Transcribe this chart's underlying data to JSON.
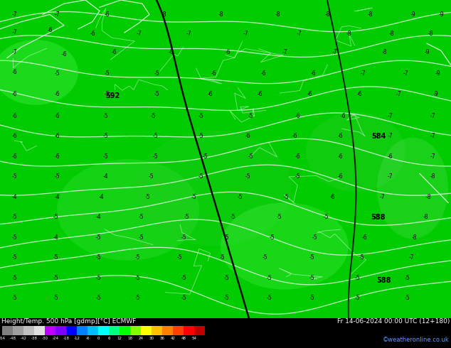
{
  "title_left": "Height/Temp. 500 hPa [gdmp][°C] ECMWF",
  "title_right": "Fr 14-06-2024 00:00 UTC (12+180)",
  "credit": "©weatheronline.co.uk",
  "colorbar_ticks": [
    -54,
    -48,
    -42,
    -38,
    -30,
    -24,
    -18,
    -12,
    -6,
    0,
    6,
    12,
    18,
    24,
    30,
    36,
    42,
    48,
    54
  ],
  "colorbar_colors": [
    "#808080",
    "#a0a0a0",
    "#c0c0c0",
    "#e0e0e0",
    "#bf00ff",
    "#8000ff",
    "#0000ff",
    "#007fff",
    "#00bfff",
    "#00ffff",
    "#00ff80",
    "#00ff00",
    "#80ff00",
    "#ffff00",
    "#ffbf00",
    "#ff8000",
    "#ff4000",
    "#ff0000",
    "#c00000"
  ],
  "bg_color": "#00cc00",
  "temp_numbers": [
    [
      20,
      420,
      "-7"
    ],
    [
      80,
      420,
      "-7"
    ],
    [
      150,
      420,
      "-6"
    ],
    [
      230,
      420,
      "-8"
    ],
    [
      310,
      420,
      "-8"
    ],
    [
      390,
      420,
      "-8"
    ],
    [
      460,
      420,
      "-8"
    ],
    [
      520,
      420,
      "-8"
    ],
    [
      580,
      420,
      "-9"
    ],
    [
      620,
      420,
      "-9"
    ],
    [
      20,
      395,
      "-7"
    ],
    [
      70,
      398,
      "-6"
    ],
    [
      130,
      393,
      "-6"
    ],
    [
      195,
      393,
      "-7"
    ],
    [
      265,
      393,
      "-7"
    ],
    [
      345,
      393,
      "-7"
    ],
    [
      420,
      393,
      "-7"
    ],
    [
      490,
      393,
      "-8"
    ],
    [
      550,
      393,
      "-8"
    ],
    [
      605,
      393,
      "-8"
    ],
    [
      20,
      368,
      "-7"
    ],
    [
      90,
      365,
      "-6"
    ],
    [
      160,
      368,
      "-6"
    ],
    [
      240,
      368,
      "-6"
    ],
    [
      320,
      368,
      "-6"
    ],
    [
      400,
      368,
      "-7"
    ],
    [
      470,
      368,
      "-7"
    ],
    [
      540,
      368,
      "-8"
    ],
    [
      600,
      368,
      "-9"
    ],
    [
      20,
      340,
      "-6"
    ],
    [
      80,
      338,
      "-5"
    ],
    [
      150,
      338,
      "-5"
    ],
    [
      220,
      338,
      "-5"
    ],
    [
      300,
      338,
      "-6"
    ],
    [
      370,
      338,
      "-6"
    ],
    [
      440,
      338,
      "-6"
    ],
    [
      510,
      338,
      "-7"
    ],
    [
      570,
      338,
      "-7"
    ],
    [
      615,
      338,
      "-9"
    ],
    [
      20,
      310,
      "-6"
    ],
    [
      80,
      310,
      "-6"
    ],
    [
      150,
      310,
      "-5"
    ],
    [
      220,
      310,
      "-5"
    ],
    [
      295,
      310,
      "-6"
    ],
    [
      365,
      310,
      "-6"
    ],
    [
      435,
      310,
      "-6"
    ],
    [
      505,
      310,
      "-6"
    ],
    [
      560,
      310,
      "-7"
    ],
    [
      612,
      310,
      "-9"
    ],
    [
      20,
      280,
      "-6"
    ],
    [
      80,
      280,
      "-6"
    ],
    [
      148,
      280,
      "-5"
    ],
    [
      215,
      280,
      "-5"
    ],
    [
      282,
      280,
      "-5"
    ],
    [
      352,
      280,
      "-5"
    ],
    [
      418,
      280,
      "-6"
    ],
    [
      482,
      280,
      "-6"
    ],
    [
      548,
      280,
      "-7"
    ],
    [
      608,
      280,
      "-7"
    ],
    [
      20,
      252,
      "-6"
    ],
    [
      80,
      252,
      "-6"
    ],
    [
      148,
      252,
      "-5"
    ],
    [
      218,
      252,
      "-5"
    ],
    [
      282,
      252,
      "-5"
    ],
    [
      348,
      252,
      "-6"
    ],
    [
      414,
      252,
      "-6"
    ],
    [
      478,
      252,
      "-6"
    ],
    [
      548,
      252,
      "-7"
    ],
    [
      608,
      252,
      "-7"
    ],
    [
      20,
      224,
      "-6"
    ],
    [
      80,
      224,
      "-6"
    ],
    [
      148,
      224,
      "-5"
    ],
    [
      218,
      224,
      "-5"
    ],
    [
      288,
      224,
      "-5"
    ],
    [
      352,
      224,
      "-5"
    ],
    [
      418,
      224,
      "-6"
    ],
    [
      478,
      224,
      "-6"
    ],
    [
      548,
      224,
      "-6"
    ],
    [
      608,
      224,
      "-7"
    ],
    [
      20,
      196,
      "-5"
    ],
    [
      80,
      196,
      "-5"
    ],
    [
      148,
      196,
      "-4"
    ],
    [
      212,
      196,
      "-5"
    ],
    [
      282,
      196,
      "-5"
    ],
    [
      348,
      196,
      "-5"
    ],
    [
      418,
      196,
      "-5"
    ],
    [
      478,
      196,
      "-6"
    ],
    [
      548,
      196,
      "-7"
    ],
    [
      608,
      196,
      "-8"
    ],
    [
      20,
      168,
      "-4"
    ],
    [
      80,
      168,
      "-4"
    ],
    [
      142,
      168,
      "-4"
    ],
    [
      207,
      168,
      "-5"
    ],
    [
      272,
      168,
      "-5"
    ],
    [
      337,
      168,
      "-5"
    ],
    [
      402,
      168,
      "-5"
    ],
    [
      467,
      168,
      "-6"
    ],
    [
      537,
      168,
      "-7"
    ],
    [
      602,
      168,
      "-8"
    ],
    [
      20,
      140,
      "-5"
    ],
    [
      78,
      140,
      "-5"
    ],
    [
      138,
      140,
      "-4"
    ],
    [
      198,
      140,
      "-5"
    ],
    [
      262,
      140,
      "-5"
    ],
    [
      327,
      140,
      "-5"
    ],
    [
      392,
      140,
      "-5"
    ],
    [
      458,
      140,
      "-5"
    ],
    [
      528,
      140,
      "-7"
    ],
    [
      598,
      140,
      "-8"
    ],
    [
      20,
      112,
      "-5"
    ],
    [
      78,
      112,
      "-4"
    ],
    [
      138,
      112,
      "-5"
    ],
    [
      198,
      112,
      "-5"
    ],
    [
      258,
      112,
      "-5"
    ],
    [
      318,
      112,
      "-5"
    ],
    [
      382,
      112,
      "-5"
    ],
    [
      442,
      112,
      "-5"
    ],
    [
      512,
      112,
      "-6"
    ],
    [
      582,
      112,
      "-8"
    ],
    [
      20,
      84,
      "-5"
    ],
    [
      78,
      84,
      "-5"
    ],
    [
      138,
      84,
      "-5"
    ],
    [
      193,
      84,
      "-5"
    ],
    [
      252,
      84,
      "-5"
    ],
    [
      312,
      84,
      "-5"
    ],
    [
      372,
      84,
      "-5"
    ],
    [
      438,
      84,
      "-5"
    ],
    [
      508,
      84,
      "-5"
    ],
    [
      578,
      84,
      "-7"
    ],
    [
      20,
      56,
      "-5"
    ],
    [
      78,
      56,
      "-5"
    ],
    [
      138,
      56,
      "-5"
    ],
    [
      193,
      56,
      "-5"
    ],
    [
      258,
      56,
      "-5"
    ],
    [
      318,
      56,
      "-5"
    ],
    [
      378,
      56,
      "-5"
    ],
    [
      438,
      56,
      "-5"
    ],
    [
      502,
      56,
      "-5"
    ],
    [
      572,
      56,
      "-5"
    ],
    [
      20,
      28,
      "-5"
    ],
    [
      78,
      28,
      "-5"
    ],
    [
      138,
      28,
      "-5"
    ],
    [
      193,
      28,
      "-5"
    ],
    [
      258,
      28,
      "-5"
    ],
    [
      318,
      28,
      "-5"
    ],
    [
      378,
      28,
      "-5"
    ],
    [
      438,
      28,
      "-5"
    ],
    [
      502,
      28,
      "-5"
    ],
    [
      572,
      28,
      "-5"
    ]
  ],
  "height_labels": [
    [
      158,
      308,
      "592"
    ],
    [
      532,
      252,
      "584"
    ],
    [
      532,
      140,
      "588"
    ],
    [
      540,
      52,
      "588"
    ]
  ],
  "fig_width": 6.34,
  "fig_height": 4.9
}
